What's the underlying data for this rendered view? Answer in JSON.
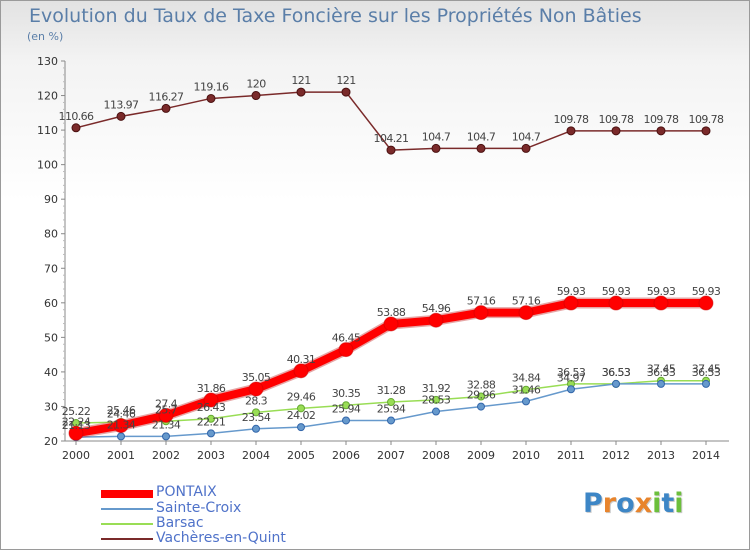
{
  "title": "Evolution du Taux de Taxe Foncière sur les Propriétés Non Bâties",
  "unit_label": "(en %)",
  "chart_data": {
    "type": "line",
    "title": "Evolution du Taux de Taxe Foncière sur les Propriétés Non Bâties",
    "ylabel": "(en %)",
    "xlabel": "",
    "x": [
      "2000",
      "2001",
      "2002",
      "2003",
      "2004",
      "2005",
      "2006",
      "2007",
      "2008",
      "2009",
      "2010",
      "2011",
      "2012",
      "2013",
      "2014"
    ],
    "ylim": [
      20,
      130
    ],
    "yticks": [
      20,
      30,
      40,
      50,
      60,
      70,
      80,
      90,
      100,
      110,
      120,
      130
    ],
    "grid": false,
    "legend_position": "bottom-left",
    "series": [
      {
        "name": "PONTAIX",
        "color": "#ff0000",
        "values": [
          22.24,
          24.46,
          27.4,
          31.86,
          35.05,
          40.31,
          46.45,
          53.88,
          54.96,
          57.16,
          57.16,
          59.93,
          59.93,
          59.93,
          59.93
        ],
        "labels": [
          "22.24",
          "24.46",
          "27.4",
          "31.86",
          "35.05",
          "40.31",
          "46.45",
          "53.88",
          "54.96",
          "57.16",
          "57.16",
          "59.93",
          "59.93",
          "59.93",
          "59.93"
        ]
      },
      {
        "name": "Sainte-Croix",
        "color": "#6699cc",
        "values": [
          21.13,
          21.34,
          21.34,
          22.21,
          23.54,
          24.02,
          25.94,
          25.94,
          28.53,
          29.96,
          31.46,
          34.97,
          36.53,
          36.53,
          36.53
        ],
        "labels": [
          "21.13",
          "21.34",
          "21.34",
          "22.21",
          "23.54",
          "24.02",
          "25.94",
          "25.94",
          "28.53",
          "29.96",
          "31.46",
          "34.97",
          "36.53",
          "36.53",
          "36.53"
        ]
      },
      {
        "name": "Barsac",
        "color": "#99dd55",
        "values": [
          25.22,
          25.46,
          25.7,
          26.43,
          28.3,
          29.46,
          30.35,
          31.28,
          31.92,
          32.88,
          34.84,
          36.53,
          36.53,
          37.45,
          37.45
        ],
        "labels": [
          "25.22",
          "25.46",
          "25.7",
          "26.43",
          "28.3",
          "29.46",
          "30.35",
          "31.28",
          "31.92",
          "32.88",
          "34.84",
          "36.53",
          "36.53",
          "37.45",
          "37.45"
        ]
      },
      {
        "name": "Vachères-en-Quint",
        "color": "#7a2a2a",
        "values": [
          110.66,
          113.97,
          116.27,
          119.16,
          120,
          121,
          121,
          104.21,
          104.7,
          104.7,
          104.7,
          109.78,
          109.78,
          109.78,
          109.78
        ],
        "labels": [
          "110.66",
          "113.97",
          "116.27",
          "119.16",
          "120",
          "121",
          "121",
          "104.21",
          "104.7",
          "104.7",
          "104.7",
          "109.78",
          "109.78",
          "109.78",
          "109.78"
        ]
      }
    ]
  },
  "legend": [
    {
      "label": "PONTAIX",
      "color": "#ff0000"
    },
    {
      "label": "Sainte-Croix",
      "color": "#6699cc"
    },
    {
      "label": "Barsac",
      "color": "#99dd55"
    },
    {
      "label": "Vachères-en-Quint",
      "color": "#7a2a2a"
    }
  ],
  "logo": {
    "text": "Proxiti",
    "letters": [
      "P",
      "r",
      "o",
      "x",
      "i",
      "t",
      "i"
    ],
    "colors": [
      "#3d86c6",
      "#e8842c",
      "#3d86c6",
      "#e8842c",
      "#6cbf3c",
      "#3d86c6",
      "#6cbf3c"
    ]
  }
}
